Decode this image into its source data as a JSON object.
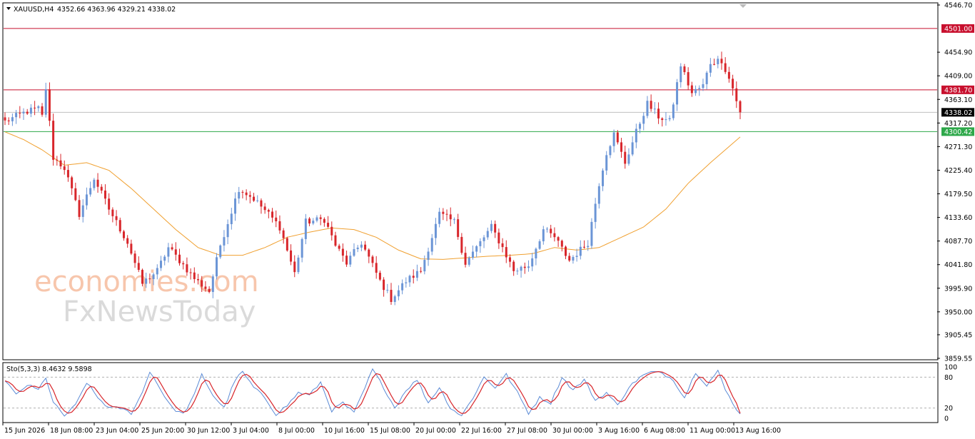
{
  "chart_data": {
    "type": "candlestick",
    "header": {
      "symbol": "XAUUSD,H4",
      "ohlc": "4352.66 4363.96 4329.21 4338.02"
    },
    "x_labels": [
      "15 Jun 2026",
      "18 Jun 08:00",
      "23 Jun 04:00",
      "25 Jun 20:00",
      "30 Jun 12:00",
      "3 Jul 04:00",
      "8 Jul 00:00",
      "10 Jul 16:00",
      "15 Jul 08:00",
      "20 Jul 00:00",
      "22 Jul 16:00",
      "27 Jul 08:00",
      "30 Jul 00:00",
      "3 Aug 16:00",
      "6 Aug 08:00",
      "11 Aug 00:00",
      "13 Aug 16:00"
    ],
    "y_ticks": [
      "4546.70",
      "4454.90",
      "4409.00",
      "4363.10",
      "4317.20",
      "4271.30",
      "4225.40",
      "4179.50",
      "4133.60",
      "4087.70",
      "4041.80",
      "3995.90",
      "3950.00",
      "3905.45",
      "3859.55"
    ],
    "ylim": [
      3859.55,
      4546.7
    ],
    "levels": [
      {
        "label": "4501.00",
        "value": 4501.0,
        "color": "#c8102e"
      },
      {
        "label": "4381.70",
        "value": 4381.7,
        "color": "#c8102e"
      },
      {
        "label": "4338.02",
        "value": 4338.02,
        "color": "#000000"
      },
      {
        "label": "4300.42",
        "value": 4300.42,
        "color": "#2ea84a"
      }
    ],
    "price_anchors": [
      {
        "i": 0,
        "v": 4320
      },
      {
        "i": 6,
        "v": 4340
      },
      {
        "i": 9,
        "v": 4345
      },
      {
        "i": 10,
        "v": 4330
      },
      {
        "i": 11,
        "v": 4385
      },
      {
        "i": 13,
        "v": 4250
      },
      {
        "i": 16,
        "v": 4230
      },
      {
        "i": 20,
        "v": 4140
      },
      {
        "i": 24,
        "v": 4210
      },
      {
        "i": 28,
        "v": 4150
      },
      {
        "i": 33,
        "v": 4085
      },
      {
        "i": 37,
        "v": 4005
      },
      {
        "i": 41,
        "v": 4030
      },
      {
        "i": 44,
        "v": 4075
      },
      {
        "i": 47,
        "v": 4050
      },
      {
        "i": 51,
        "v": 4015
      },
      {
        "i": 55,
        "v": 3990
      },
      {
        "i": 58,
        "v": 4080
      },
      {
        "i": 63,
        "v": 4190
      },
      {
        "i": 67,
        "v": 4170
      },
      {
        "i": 71,
        "v": 4140
      },
      {
        "i": 74,
        "v": 4115
      },
      {
        "i": 78,
        "v": 4025
      },
      {
        "i": 81,
        "v": 4125
      },
      {
        "i": 86,
        "v": 4130
      },
      {
        "i": 89,
        "v": 4080
      },
      {
        "i": 92,
        "v": 4045
      },
      {
        "i": 96,
        "v": 4085
      },
      {
        "i": 101,
        "v": 4010
      },
      {
        "i": 104,
        "v": 3975
      },
      {
        "i": 108,
        "v": 4010
      },
      {
        "i": 112,
        "v": 4030
      },
      {
        "i": 117,
        "v": 4140
      },
      {
        "i": 121,
        "v": 4125
      },
      {
        "i": 124,
        "v": 4045
      },
      {
        "i": 127,
        "v": 4075
      },
      {
        "i": 131,
        "v": 4115
      },
      {
        "i": 134,
        "v": 4075
      },
      {
        "i": 137,
        "v": 4030
      },
      {
        "i": 141,
        "v": 4040
      },
      {
        "i": 145,
        "v": 4110
      },
      {
        "i": 148,
        "v": 4095
      },
      {
        "i": 152,
        "v": 4050
      },
      {
        "i": 157,
        "v": 4085
      },
      {
        "i": 160,
        "v": 4200
      },
      {
        "i": 162,
        "v": 4260
      },
      {
        "i": 164,
        "v": 4295
      },
      {
        "i": 167,
        "v": 4240
      },
      {
        "i": 170,
        "v": 4300
      },
      {
        "i": 173,
        "v": 4355
      },
      {
        "i": 176,
        "v": 4330
      },
      {
        "i": 179,
        "v": 4320
      },
      {
        "i": 182,
        "v": 4430
      },
      {
        "i": 185,
        "v": 4375
      },
      {
        "i": 188,
        "v": 4390
      },
      {
        "i": 190,
        "v": 4435
      },
      {
        "i": 193,
        "v": 4440
      },
      {
        "i": 196,
        "v": 4385
      },
      {
        "i": 198,
        "v": 4338
      }
    ],
    "moving_average_anchors": [
      {
        "i": 0,
        "v": 4300
      },
      {
        "i": 5,
        "v": 4285
      },
      {
        "i": 10,
        "v": 4265
      },
      {
        "i": 16,
        "v": 4235
      },
      {
        "i": 22,
        "v": 4240
      },
      {
        "i": 28,
        "v": 4225
      },
      {
        "i": 34,
        "v": 4190
      },
      {
        "i": 40,
        "v": 4150
      },
      {
        "i": 46,
        "v": 4110
      },
      {
        "i": 52,
        "v": 4075
      },
      {
        "i": 58,
        "v": 4060
      },
      {
        "i": 64,
        "v": 4060
      },
      {
        "i": 70,
        "v": 4075
      },
      {
        "i": 76,
        "v": 4095
      },
      {
        "i": 82,
        "v": 4105
      },
      {
        "i": 88,
        "v": 4113
      },
      {
        "i": 94,
        "v": 4110
      },
      {
        "i": 100,
        "v": 4095
      },
      {
        "i": 106,
        "v": 4070
      },
      {
        "i": 112,
        "v": 4053
      },
      {
        "i": 118,
        "v": 4052
      },
      {
        "i": 124,
        "v": 4055
      },
      {
        "i": 130,
        "v": 4058
      },
      {
        "i": 136,
        "v": 4060
      },
      {
        "i": 142,
        "v": 4063
      },
      {
        "i": 148,
        "v": 4075
      },
      {
        "i": 154,
        "v": 4070
      },
      {
        "i": 160,
        "v": 4075
      },
      {
        "i": 166,
        "v": 4095
      },
      {
        "i": 172,
        "v": 4115
      },
      {
        "i": 178,
        "v": 4150
      },
      {
        "i": 184,
        "v": 4200
      },
      {
        "i": 190,
        "v": 4240
      },
      {
        "i": 198,
        "v": 4290
      }
    ],
    "bull_color": "#6b95d6",
    "bear_color": "#d8262b",
    "ma_color": "#f0a030",
    "oscillator": {
      "label": "Sto(5,3,3) 8.4632 9.5898",
      "y_ticks": [
        "100",
        "80",
        "20",
        "0"
      ],
      "levels": [
        80,
        20
      ],
      "main_color": "#5b8bd6",
      "signal_color": "#d8262b",
      "k_anchors": [
        {
          "i": 0,
          "v": 75
        },
        {
          "i": 3,
          "v": 45
        },
        {
          "i": 6,
          "v": 65
        },
        {
          "i": 9,
          "v": 55
        },
        {
          "i": 11,
          "v": 80
        },
        {
          "i": 13,
          "v": 30
        },
        {
          "i": 16,
          "v": 5
        },
        {
          "i": 19,
          "v": 25
        },
        {
          "i": 22,
          "v": 70
        },
        {
          "i": 25,
          "v": 40
        },
        {
          "i": 28,
          "v": 20
        },
        {
          "i": 31,
          "v": 20
        },
        {
          "i": 34,
          "v": 10
        },
        {
          "i": 37,
          "v": 50
        },
        {
          "i": 39,
          "v": 92
        },
        {
          "i": 42,
          "v": 55
        },
        {
          "i": 45,
          "v": 20
        },
        {
          "i": 48,
          "v": 8
        },
        {
          "i": 51,
          "v": 45
        },
        {
          "i": 53,
          "v": 85
        },
        {
          "i": 56,
          "v": 45
        },
        {
          "i": 59,
          "v": 20
        },
        {
          "i": 62,
          "v": 75
        },
        {
          "i": 64,
          "v": 90
        },
        {
          "i": 67,
          "v": 60
        },
        {
          "i": 70,
          "v": 40
        },
        {
          "i": 73,
          "v": 8
        },
        {
          "i": 76,
          "v": 25
        },
        {
          "i": 79,
          "v": 50
        },
        {
          "i": 82,
          "v": 45
        },
        {
          "i": 85,
          "v": 70
        },
        {
          "i": 88,
          "v": 15
        },
        {
          "i": 91,
          "v": 30
        },
        {
          "i": 94,
          "v": 10
        },
        {
          "i": 97,
          "v": 60
        },
        {
          "i": 99,
          "v": 95
        },
        {
          "i": 102,
          "v": 60
        },
        {
          "i": 105,
          "v": 20
        },
        {
          "i": 108,
          "v": 55
        },
        {
          "i": 111,
          "v": 75
        },
        {
          "i": 114,
          "v": 30
        },
        {
          "i": 117,
          "v": 60
        },
        {
          "i": 120,
          "v": 20
        },
        {
          "i": 123,
          "v": 5
        },
        {
          "i": 126,
          "v": 40
        },
        {
          "i": 129,
          "v": 80
        },
        {
          "i": 132,
          "v": 60
        },
        {
          "i": 135,
          "v": 85
        },
        {
          "i": 138,
          "v": 50
        },
        {
          "i": 141,
          "v": 10
        },
        {
          "i": 144,
          "v": 40
        },
        {
          "i": 147,
          "v": 30
        },
        {
          "i": 150,
          "v": 80
        },
        {
          "i": 153,
          "v": 55
        },
        {
          "i": 156,
          "v": 75
        },
        {
          "i": 159,
          "v": 35
        },
        {
          "i": 162,
          "v": 50
        },
        {
          "i": 165,
          "v": 25
        },
        {
          "i": 168,
          "v": 60
        },
        {
          "i": 171,
          "v": 80
        },
        {
          "i": 174,
          "v": 90
        },
        {
          "i": 177,
          "v": 88
        },
        {
          "i": 180,
          "v": 75
        },
        {
          "i": 183,
          "v": 40
        },
        {
          "i": 186,
          "v": 90
        },
        {
          "i": 189,
          "v": 65
        },
        {
          "i": 192,
          "v": 92
        },
        {
          "i": 194,
          "v": 55
        },
        {
          "i": 196,
          "v": 30
        },
        {
          "i": 198,
          "v": 8
        }
      ]
    }
  },
  "watermark": {
    "line1": "economies.com",
    "line2": "FxNewsToday"
  }
}
